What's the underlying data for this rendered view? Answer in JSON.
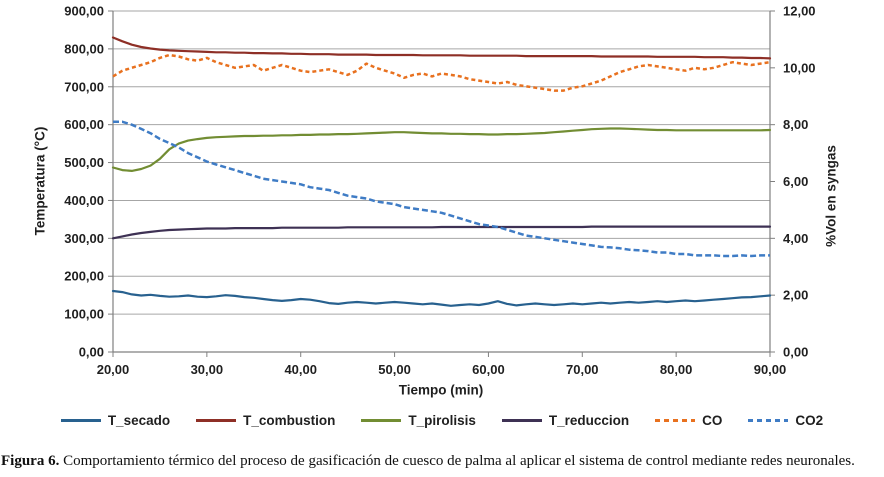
{
  "figure": {
    "caption": {
      "label": "Figura 6.",
      "text": "Comportamiento térmico del proceso de gasificación de cuesco de palma al aplicar el sistema de control mediante redes neuronales."
    }
  },
  "chart_data": {
    "type": "line",
    "title": "",
    "xlabel": "Tiempo (min)",
    "ylabel_left": "Temperatura (°C)",
    "ylabel_right": "%Vol en syngas",
    "xlim": [
      20,
      90
    ],
    "ylim_left": [
      0,
      900
    ],
    "ylim_right": [
      0,
      12
    ],
    "grid": "horizontal",
    "legend_position": "bottom",
    "x_tick_values": [
      20,
      30,
      40,
      50,
      60,
      70,
      80,
      90
    ],
    "x_tick_labels": [
      "20,00",
      "30,00",
      "40,00",
      "50,00",
      "60,00",
      "70,00",
      "80,00",
      "90,00"
    ],
    "left_tick_values": [
      0,
      100,
      200,
      300,
      400,
      500,
      600,
      700,
      800,
      900
    ],
    "left_tick_labels": [
      "0,00",
      "100,00",
      "200,00",
      "300,00",
      "400,00",
      "500,00",
      "600,00",
      "700,00",
      "800,00",
      "900,00"
    ],
    "right_tick_values": [
      0,
      2,
      4,
      6,
      8,
      10,
      12
    ],
    "right_tick_labels": [
      "0,00",
      "2,00",
      "4,00",
      "6,00",
      "8,00",
      "10,00",
      "12,00"
    ],
    "colors": {
      "grid": "#a6a6a6",
      "axis": "#808080",
      "tick_text": "#1f1f1f"
    },
    "x": [
      20,
      21,
      22,
      23,
      24,
      25,
      26,
      27,
      28,
      29,
      30,
      31,
      32,
      33,
      34,
      35,
      36,
      37,
      38,
      39,
      40,
      41,
      42,
      43,
      44,
      45,
      46,
      47,
      48,
      49,
      50,
      51,
      52,
      53,
      54,
      55,
      56,
      57,
      58,
      59,
      60,
      61,
      62,
      63,
      64,
      65,
      66,
      67,
      68,
      69,
      70,
      71,
      72,
      73,
      74,
      75,
      76,
      77,
      78,
      79,
      80,
      81,
      82,
      83,
      84,
      85,
      86,
      87,
      88,
      89,
      90
    ],
    "series": [
      {
        "label": "T_secado",
        "axis": "left",
        "style": "solid",
        "color": "#28618f",
        "values": [
          161,
          158,
          152,
          149,
          151,
          148,
          146,
          147,
          149,
          146,
          145,
          147,
          150,
          148,
          145,
          143,
          140,
          137,
          135,
          137,
          140,
          138,
          134,
          129,
          127,
          130,
          132,
          130,
          128,
          130,
          132,
          130,
          128,
          126,
          128,
          125,
          122,
          124,
          126,
          124,
          128,
          134,
          127,
          123,
          126,
          128,
          126,
          124,
          126,
          128,
          126,
          128,
          130,
          128,
          130,
          132,
          130,
          132,
          134,
          132,
          134,
          136,
          134,
          136,
          138,
          140,
          142,
          144,
          145,
          147,
          149
        ]
      },
      {
        "label": "T_combustion",
        "axis": "left",
        "style": "solid",
        "color": "#8e2f26",
        "values": [
          830,
          820,
          811,
          805,
          801,
          798,
          796,
          795,
          794,
          793,
          792,
          791,
          791,
          790,
          790,
          789,
          789,
          788,
          788,
          787,
          787,
          786,
          786,
          786,
          785,
          785,
          785,
          785,
          784,
          784,
          784,
          784,
          784,
          783,
          783,
          783,
          783,
          783,
          782,
          782,
          782,
          782,
          782,
          782,
          781,
          781,
          781,
          781,
          781,
          781,
          781,
          781,
          780,
          780,
          780,
          780,
          780,
          780,
          779,
          779,
          779,
          779,
          779,
          778,
          778,
          778,
          777,
          777,
          776,
          776,
          775
        ]
      },
      {
        "label": "T_pirolisis",
        "axis": "left",
        "style": "solid",
        "color": "#728d33",
        "values": [
          487,
          480,
          478,
          483,
          492,
          510,
          535,
          550,
          558,
          562,
          565,
          567,
          568,
          569,
          570,
          570,
          571,
          571,
          572,
          572,
          573,
          573,
          574,
          574,
          575,
          575,
          576,
          577,
          578,
          579,
          580,
          580,
          579,
          578,
          577,
          577,
          576,
          576,
          575,
          575,
          574,
          574,
          575,
          575,
          576,
          577,
          578,
          580,
          582,
          584,
          586,
          588,
          589,
          590,
          590,
          589,
          588,
          587,
          586,
          586,
          585,
          585,
          585,
          585,
          585,
          585,
          585,
          585,
          585,
          585,
          586
        ]
      },
      {
        "label": "T_reduccion",
        "axis": "left",
        "style": "solid",
        "color": "#3e3154",
        "values": [
          300,
          305,
          310,
          314,
          317,
          320,
          322,
          323,
          324,
          325,
          326,
          326,
          326,
          327,
          327,
          327,
          327,
          327,
          328,
          328,
          328,
          328,
          328,
          328,
          328,
          329,
          329,
          329,
          329,
          329,
          329,
          329,
          329,
          329,
          329,
          330,
          330,
          330,
          330,
          330,
          330,
          330,
          330,
          330,
          330,
          330,
          330,
          330,
          330,
          330,
          330,
          331,
          331,
          331,
          331,
          331,
          331,
          331,
          331,
          331,
          331,
          331,
          331,
          331,
          331,
          331,
          331,
          331,
          331,
          331,
          331
        ]
      },
      {
        "label": "CO",
        "axis": "right",
        "style": "dashed",
        "dash": "4 3",
        "color": "#e8711f",
        "values": [
          9.7,
          9.9,
          10.0,
          10.1,
          10.2,
          10.35,
          10.45,
          10.4,
          10.3,
          10.25,
          10.35,
          10.2,
          10.1,
          10.0,
          10.05,
          10.1,
          9.9,
          10.0,
          10.1,
          10.0,
          9.9,
          9.85,
          9.9,
          9.95,
          9.85,
          9.75,
          9.9,
          10.15,
          10.0,
          9.9,
          9.8,
          9.65,
          9.75,
          9.8,
          9.7,
          9.8,
          9.75,
          9.7,
          9.6,
          9.55,
          9.5,
          9.45,
          9.5,
          9.4,
          9.35,
          9.3,
          9.25,
          9.2,
          9.2,
          9.3,
          9.35,
          9.45,
          9.55,
          9.7,
          9.85,
          9.95,
          10.05,
          10.1,
          10.05,
          10.0,
          9.95,
          9.9,
          10.0,
          9.95,
          10.0,
          10.1,
          10.2,
          10.15,
          10.1,
          10.15,
          10.2
        ]
      },
      {
        "label": "CO2",
        "axis": "right",
        "style": "dashed",
        "dash": "6 3",
        "color": "#3f7cc5",
        "values": [
          8.1,
          8.1,
          8.0,
          7.85,
          7.7,
          7.5,
          7.35,
          7.2,
          7.0,
          6.85,
          6.7,
          6.6,
          6.5,
          6.4,
          6.3,
          6.2,
          6.1,
          6.05,
          6.0,
          5.95,
          5.9,
          5.8,
          5.75,
          5.7,
          5.6,
          5.5,
          5.45,
          5.4,
          5.3,
          5.25,
          5.2,
          5.1,
          5.05,
          5.0,
          4.95,
          4.9,
          4.8,
          4.7,
          4.6,
          4.5,
          4.45,
          4.4,
          4.3,
          4.2,
          4.1,
          4.05,
          4.0,
          3.95,
          3.9,
          3.85,
          3.8,
          3.75,
          3.7,
          3.68,
          3.65,
          3.6,
          3.58,
          3.55,
          3.5,
          3.5,
          3.45,
          3.45,
          3.4,
          3.4,
          3.4,
          3.38,
          3.38,
          3.4,
          3.38,
          3.4,
          3.4
        ]
      }
    ]
  }
}
